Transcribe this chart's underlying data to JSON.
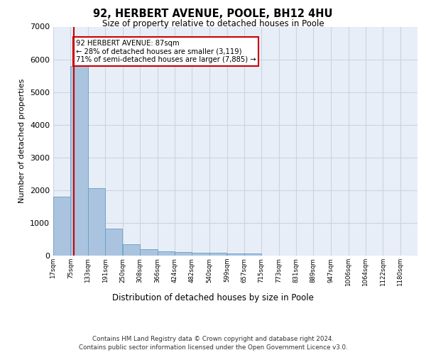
{
  "title_line1": "92, HERBERT AVENUE, POOLE, BH12 4HU",
  "title_line2": "Size of property relative to detached houses in Poole",
  "xlabel": "Distribution of detached houses by size in Poole",
  "ylabel": "Number of detached properties",
  "bin_labels": [
    "17sqm",
    "75sqm",
    "133sqm",
    "191sqm",
    "250sqm",
    "308sqm",
    "366sqm",
    "424sqm",
    "482sqm",
    "540sqm",
    "599sqm",
    "657sqm",
    "715sqm",
    "773sqm",
    "831sqm",
    "889sqm",
    "947sqm",
    "1006sqm",
    "1064sqm",
    "1122sqm",
    "1180sqm"
  ],
  "bin_edges": [
    17,
    75,
    133,
    191,
    250,
    308,
    366,
    424,
    482,
    540,
    599,
    657,
    715,
    773,
    831,
    889,
    947,
    1006,
    1064,
    1122,
    1180
  ],
  "bar_heights": [
    1800,
    5800,
    2060,
    820,
    340,
    190,
    120,
    110,
    95,
    80,
    75,
    70,
    0,
    0,
    0,
    0,
    0,
    0,
    0,
    0
  ],
  "bar_color": "#aac4e0",
  "bar_edge_color": "#6a9ec0",
  "grid_color": "#c8d4e4",
  "background_color": "#e8eef8",
  "property_sqm": 87,
  "property_line_color": "#cc0000",
  "annotation_text": "92 HERBERT AVENUE: 87sqm\n← 28% of detached houses are smaller (3,119)\n71% of semi-detached houses are larger (7,885) →",
  "annotation_box_color": "#cc0000",
  "ylim": [
    0,
    7000
  ],
  "yticks": [
    0,
    1000,
    2000,
    3000,
    4000,
    5000,
    6000,
    7000
  ],
  "footer_line1": "Contains HM Land Registry data © Crown copyright and database right 2024.",
  "footer_line2": "Contains public sector information licensed under the Open Government Licence v3.0."
}
